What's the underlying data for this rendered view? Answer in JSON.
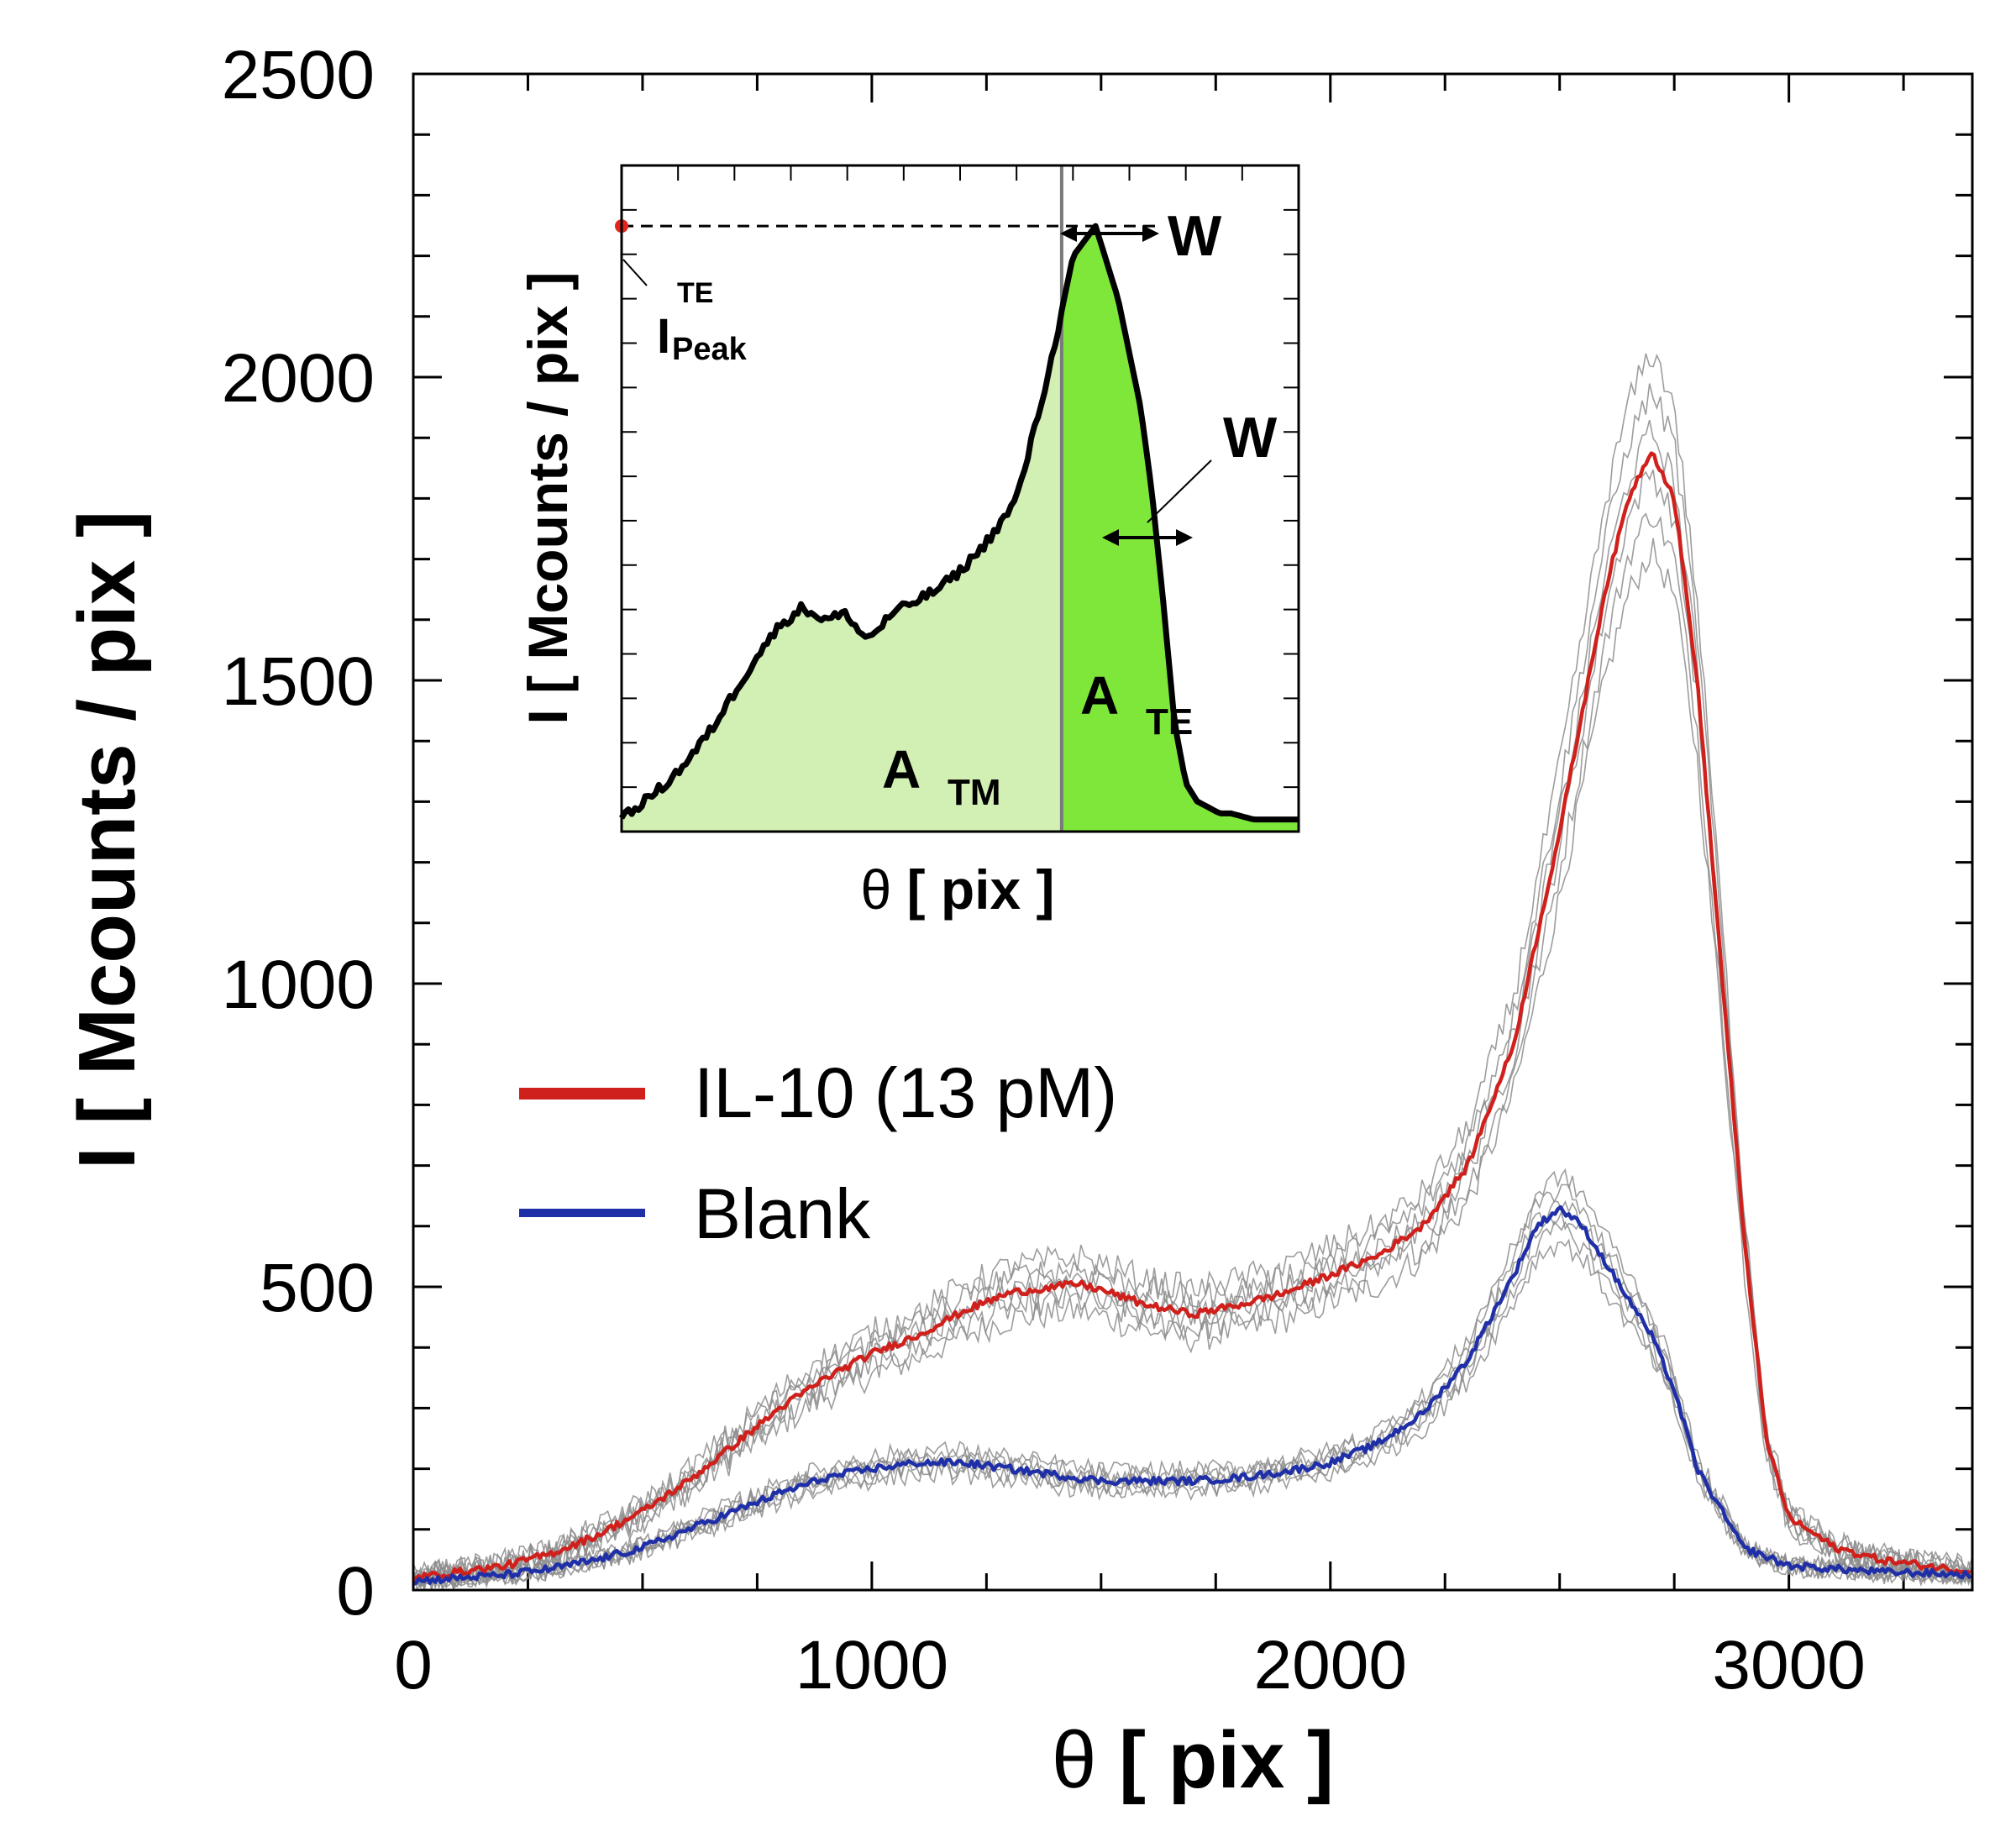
{
  "chart_data": {
    "type": "line",
    "xlabel_symbol": "θ",
    "xlabel_unit": "[ pix ]",
    "ylabel": "I [ Mcounts / pix ]",
    "xlim": [
      0,
      3400
    ],
    "ylim": [
      0,
      2500
    ],
    "x_ticks": [
      0,
      1000,
      2000,
      3000
    ],
    "x_tick_labels": [
      "0",
      "1000",
      "2000",
      "3000"
    ],
    "y_ticks": [
      0,
      500,
      1000,
      1500,
      2000,
      2500
    ],
    "y_tick_labels": [
      "0",
      "500",
      "1000",
      "1500",
      "2000",
      "2500"
    ],
    "grid": false,
    "legend_position": "center-left",
    "series": [
      {
        "name": "IL-10 (13 pM)",
        "color": "#d0201c",
        "x": [
          0,
          100,
          200,
          300,
          400,
          500,
          600,
          700,
          800,
          900,
          1000,
          1100,
          1200,
          1300,
          1400,
          1450,
          1500,
          1600,
          1700,
          1800,
          1900,
          2000,
          2100,
          2200,
          2300,
          2400,
          2500,
          2600,
          2650,
          2700,
          2750,
          2800,
          2850,
          2900,
          2950,
          3000,
          3100,
          3200,
          3300,
          3400
        ],
        "y": [
          20,
          30,
          40,
          60,
          90,
          130,
          180,
          240,
          300,
          350,
          390,
          420,
          460,
          490,
          500,
          505,
          495,
          470,
          455,
          470,
          490,
          520,
          550,
          600,
          700,
          900,
          1250,
          1650,
          1800,
          1880,
          1800,
          1500,
          1050,
          600,
          250,
          120,
          70,
          50,
          40,
          30
        ]
      },
      {
        "name": "Blank",
        "color": "#1f2fa8",
        "x": [
          0,
          100,
          200,
          300,
          400,
          500,
          600,
          700,
          800,
          900,
          1000,
          1100,
          1200,
          1300,
          1400,
          1500,
          1600,
          1700,
          1800,
          1900,
          2000,
          2100,
          2200,
          2300,
          2400,
          2450,
          2500,
          2550,
          2600,
          2700,
          2750,
          2800,
          2900,
          3000,
          3100,
          3200,
          3300,
          3400
        ],
        "y": [
          15,
          20,
          25,
          35,
          50,
          70,
          100,
          130,
          160,
          185,
          200,
          210,
          210,
          200,
          190,
          180,
          180,
          180,
          185,
          195,
          210,
          240,
          290,
          380,
          520,
          600,
          630,
          600,
          540,
          420,
          330,
          200,
          70,
          40,
          35,
          30,
          28,
          25
        ]
      }
    ],
    "replicate_color": "#8c8c8c",
    "inset": {
      "ylabel": "I [ Mcounts / pix ]",
      "xlabel_symbol": "θ",
      "xlabel_unit": "[ pix ]",
      "x": [
        0,
        20,
        40,
        60,
        80,
        100,
        120,
        140,
        160,
        180,
        200,
        210,
        220,
        230,
        240,
        250,
        260,
        280,
        300,
        320,
        340,
        350,
        360,
        380,
        400,
        420,
        440,
        460,
        470,
        480,
        490,
        500,
        510,
        520,
        530,
        540,
        560,
        580,
        600
      ],
      "y": [
        2,
        5,
        8,
        12,
        17,
        23,
        29,
        34,
        37,
        35,
        36,
        33,
        32,
        34,
        36,
        37,
        38,
        40,
        43,
        47,
        52,
        55,
        62,
        77,
        95,
        100,
        88,
        70,
        56,
        38,
        18,
        8,
        5,
        4,
        3,
        3,
        2,
        2,
        2
      ],
      "divider_x": 390,
      "peak_x": 474,
      "peak_y": 100,
      "ylim": [
        0,
        110
      ],
      "xlim": [
        0,
        600
      ],
      "peak_label_main": "I",
      "peak_label_sup": "TE",
      "peak_label_sub": "Peak",
      "w_label_top": "W",
      "w_label_side": "W",
      "area_tm_main": "A",
      "area_tm_sub": "TM",
      "area_te_main": "A",
      "area_te_sub": "TE",
      "area_tm_color": "#d2efb4",
      "area_te_color": "#7fe63a"
    }
  }
}
